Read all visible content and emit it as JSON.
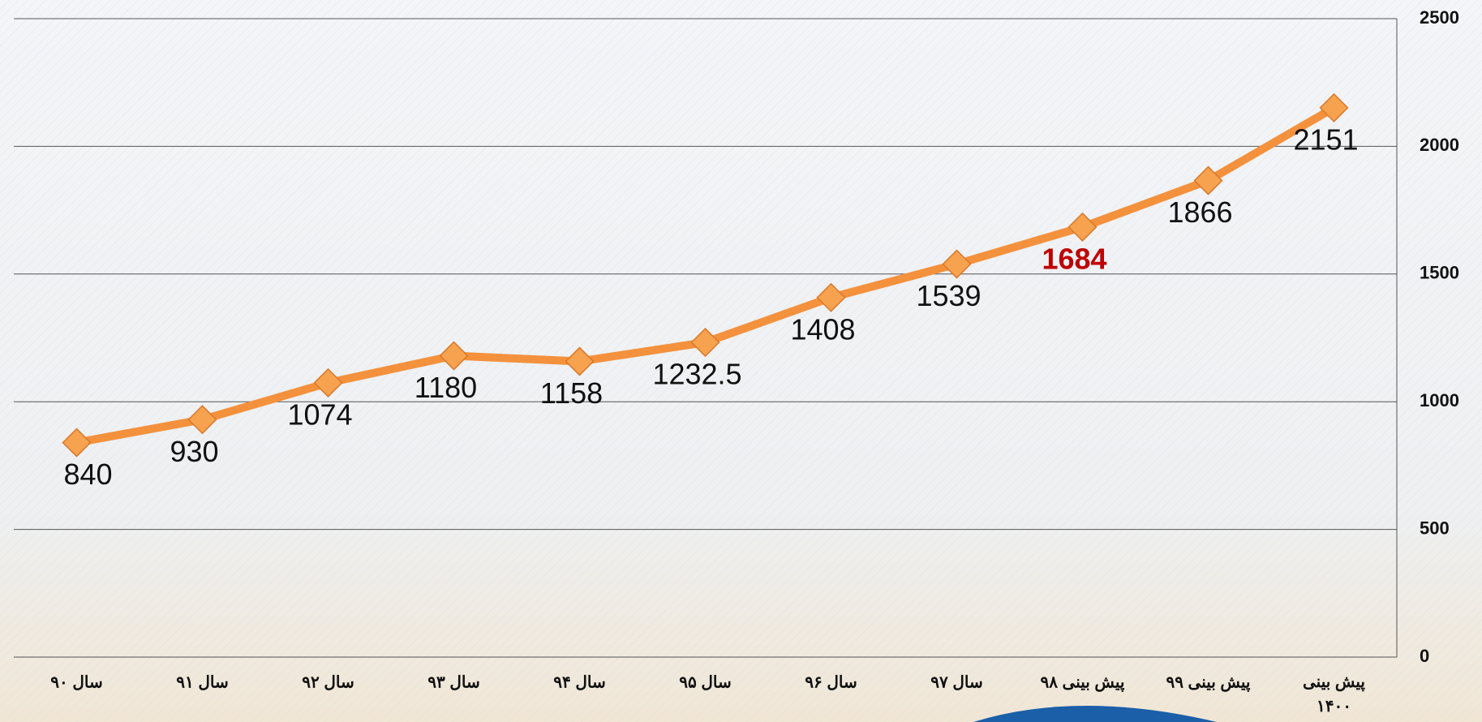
{
  "chart_data": {
    "type": "line",
    "categories": [
      "سال ۹۰",
      "سال ۹۱",
      "سال ۹۲",
      "سال ۹۳",
      "سال ۹۴",
      "سال ۹۵",
      "سال ۹۶",
      "سال ۹۷",
      "پیش بینی ۹۸",
      "پیش بینی ۹۹",
      "پیش بینی ۱۴۰۰"
    ],
    "series": [
      {
        "color": "#f4913d",
        "marker_color": "#f7a24e",
        "values": [
          840,
          930,
          1074,
          1180,
          1158,
          1232.5,
          1408,
          1539,
          1684,
          1866,
          2151
        ]
      }
    ],
    "highlight": {
      "index": 8,
      "color": "#c00000"
    },
    "ylim": [
      0,
      2500
    ],
    "yticks": [
      0,
      500,
      1000,
      1500,
      2000,
      2500
    ],
    "grid": true,
    "y_axis_side": "right"
  }
}
